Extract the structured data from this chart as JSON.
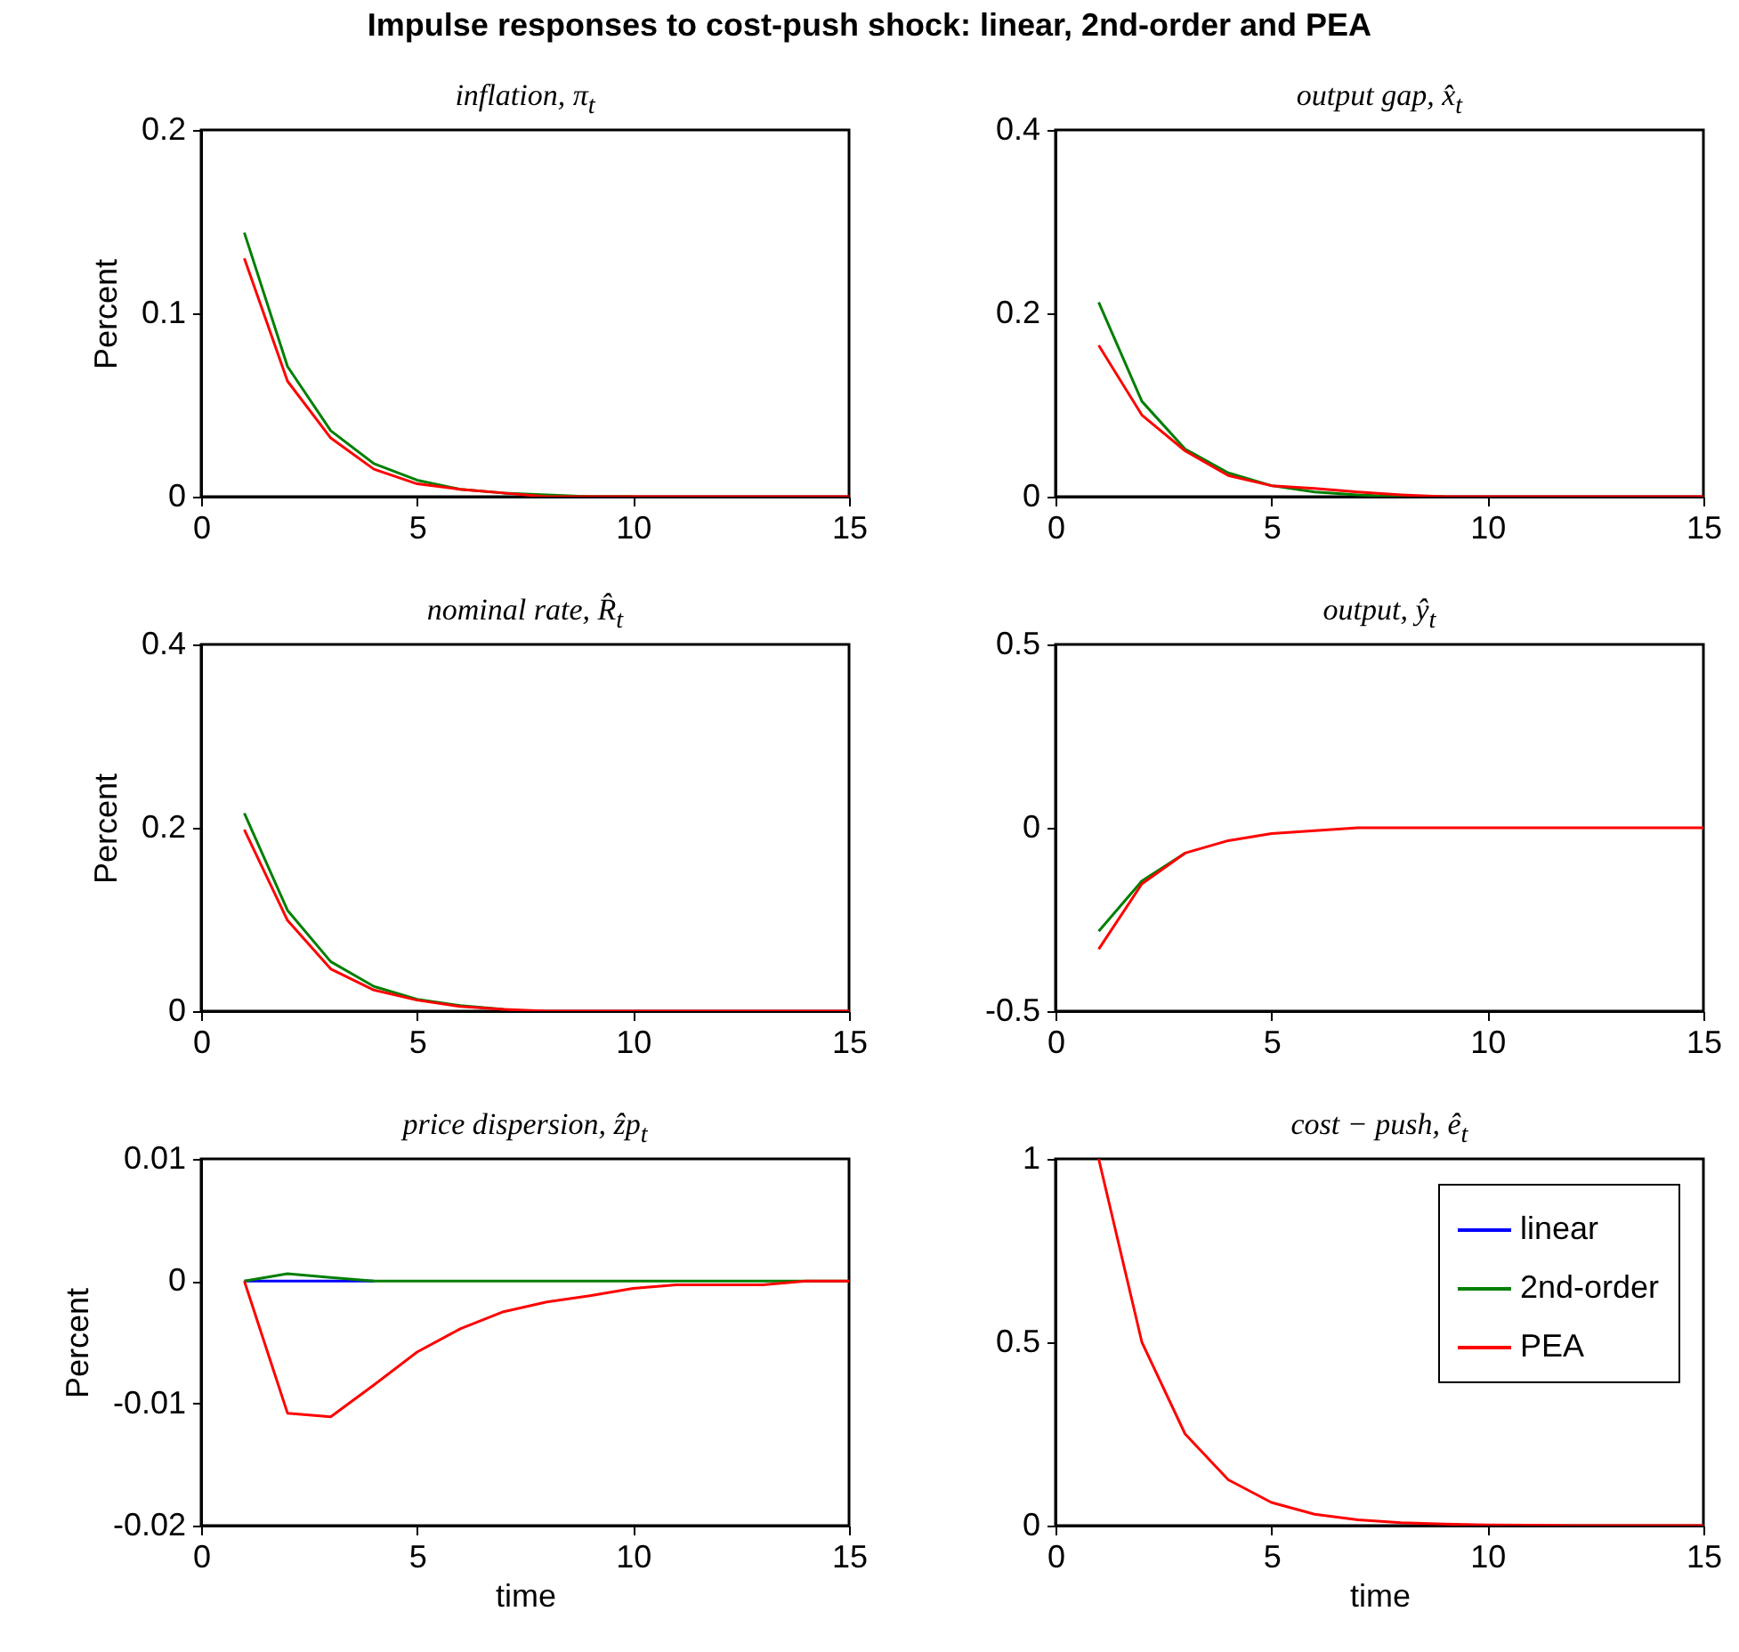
{
  "chart_data": [
    {
      "type": "line",
      "title": "inflation, π$_{t}$",
      "annotations": [
        "Impulse responses to cost-push shock: linear, 2nd-order and PEA"
      ],
      "ylabel": "Percent",
      "x": [
        1,
        2,
        3,
        4,
        5,
        6,
        7,
        8,
        9,
        10,
        11,
        12,
        13,
        14,
        15
      ],
      "xlim": [
        0,
        15
      ],
      "xticks": [
        0,
        5,
        10,
        15
      ],
      "ylim": [
        0,
        0.2
      ],
      "yticks": [
        0,
        0.1,
        0.2
      ],
      "series": [
        {
          "color": "#0000ff",
          "values": [
            null,
            null,
            null,
            null,
            null,
            null,
            null,
            null,
            null,
            null,
            null,
            null,
            null,
            null,
            null
          ]
        },
        {
          "color": "#007f00",
          "values": [
            0.144,
            0.071,
            0.036,
            0.018,
            0.009,
            0.004,
            0.002,
            0.001,
            0,
            0,
            null,
            null,
            null,
            null,
            null
          ]
        },
        {
          "color": "#ff0000",
          "values": [
            0.13,
            0.063,
            0.032,
            0.015,
            0.007,
            0.004,
            0.002,
            0,
            0,
            0,
            0,
            0,
            0,
            0,
            0
          ]
        }
      ]
    },
    {
      "type": "line",
      "title": "output gap, x̂$_{t}$",
      "x": [
        1,
        2,
        3,
        4,
        5,
        6,
        7,
        8,
        9,
        10,
        11,
        12,
        13,
        14,
        15
      ],
      "xlim": [
        0,
        15
      ],
      "xticks": [
        0,
        5,
        10,
        15
      ],
      "ylim": [
        0,
        0.4
      ],
      "yticks": [
        0,
        0.2,
        0.4
      ],
      "series": [
        {
          "color": "#0000ff",
          "values": [
            null,
            null,
            null,
            null,
            null,
            null,
            null,
            null,
            null,
            null,
            null,
            null,
            null,
            null,
            null
          ]
        },
        {
          "color": "#007f00",
          "values": [
            0.212,
            0.104,
            0.052,
            0.026,
            0.012,
            0.005,
            0.002,
            0,
            0,
            null,
            null,
            null,
            null,
            null,
            null
          ]
        },
        {
          "color": "#ff0000",
          "values": [
            0.165,
            0.089,
            0.05,
            0.023,
            0.012,
            0.009,
            0.005,
            0.002,
            0,
            0,
            0,
            0,
            0,
            0,
            0
          ]
        }
      ]
    },
    {
      "type": "line",
      "title": "nominal rate, R̂$_{t}$",
      "ylabel": "Percent",
      "x": [
        1,
        2,
        3,
        4,
        5,
        6,
        7,
        8,
        9,
        10,
        11,
        12,
        13,
        14,
        15
      ],
      "xlim": [
        0,
        15
      ],
      "xticks": [
        0,
        5,
        10,
        15
      ],
      "ylim": [
        0,
        0.4
      ],
      "yticks": [
        0,
        0.2,
        0.4
      ],
      "series": [
        {
          "color": "#0000ff",
          "values": [
            null,
            null,
            null,
            null,
            null,
            null,
            null,
            null,
            null,
            null,
            null,
            null,
            null,
            null,
            null
          ]
        },
        {
          "color": "#007f00",
          "values": [
            0.216,
            0.11,
            0.054,
            0.027,
            0.013,
            0.006,
            0.002,
            null,
            null,
            null,
            null,
            null,
            null,
            null,
            null
          ]
        },
        {
          "color": "#ff0000",
          "values": [
            0.198,
            0.099,
            0.046,
            0.023,
            0.012,
            0.005,
            0.002,
            0,
            0,
            0,
            0,
            0,
            0,
            0,
            0
          ]
        }
      ]
    },
    {
      "type": "line",
      "title": "output, ŷ$_{t}$",
      "x": [
        1,
        2,
        3,
        4,
        5,
        6,
        7,
        8,
        9,
        10,
        11,
        12,
        13,
        14,
        15
      ],
      "xlim": [
        0,
        15
      ],
      "xticks": [
        0,
        5,
        10,
        15
      ],
      "ylim": [
        -0.5,
        0.5
      ],
      "yticks": [
        -0.5,
        0,
        0.5
      ],
      "series": [
        {
          "color": "#0000ff",
          "values": [
            null,
            null,
            null,
            null,
            null,
            null,
            null,
            null,
            null,
            null,
            null,
            null,
            null,
            null,
            null
          ]
        },
        {
          "color": "#007f00",
          "values": [
            -0.282,
            -0.145,
            -0.069,
            null,
            null,
            null,
            null,
            null,
            null,
            null,
            null,
            null,
            null,
            null,
            null
          ]
        },
        {
          "color": "#ff0000",
          "values": [
            -0.331,
            -0.153,
            -0.069,
            -0.035,
            -0.016,
            -0.008,
            0,
            0,
            0,
            0,
            0,
            0,
            0,
            0,
            0
          ]
        }
      ]
    },
    {
      "type": "line",
      "title": "price dispersion, ẑp$_{t}$",
      "xlabel": "time",
      "ylabel": "Percent",
      "x": [
        1,
        2,
        3,
        4,
        5,
        6,
        7,
        8,
        9,
        10,
        11,
        12,
        13,
        14,
        15
      ],
      "xlim": [
        0,
        15
      ],
      "xticks": [
        0,
        5,
        10,
        15
      ],
      "ylim": [
        -0.02,
        0.01
      ],
      "yticks": [
        -0.02,
        -0.01,
        0,
        0.01
      ],
      "series": [
        {
          "color": "#0000ff",
          "values": [
            0,
            0,
            0,
            0,
            null,
            null,
            null,
            null,
            null,
            null,
            null,
            null,
            null,
            null,
            null
          ]
        },
        {
          "color": "#007f00",
          "values": [
            0,
            0.0006,
            0.0003,
            0,
            0,
            0,
            0,
            0,
            0,
            0,
            0,
            0,
            0,
            0,
            0
          ]
        },
        {
          "color": "#ff0000",
          "values": [
            0,
            -0.0108,
            -0.0111,
            -0.0085,
            -0.0058,
            -0.0039,
            -0.0025,
            -0.0017,
            -0.0012,
            -0.0006,
            -0.0003,
            -0.0003,
            -0.0003,
            0,
            0
          ]
        }
      ]
    },
    {
      "type": "line",
      "title": "cost − push, ê$_{t}$",
      "xlabel": "time",
      "x": [
        1,
        2,
        3,
        4,
        5,
        6,
        7,
        8,
        9,
        10,
        11,
        12,
        13,
        14,
        15
      ],
      "xlim": [
        0,
        15
      ],
      "xticks": [
        0,
        5,
        10,
        15
      ],
      "ylim": [
        0,
        1
      ],
      "yticks": [
        0,
        0.5,
        1
      ],
      "legend": "top right",
      "series": [
        {
          "name": "linear",
          "color": "#0000ff",
          "values": [
            null,
            null,
            null,
            null,
            null,
            null,
            null,
            null,
            null,
            null,
            null,
            null,
            null,
            null,
            null
          ]
        },
        {
          "name": "2nd-order",
          "color": "#007f00",
          "values": [
            null,
            null,
            null,
            null,
            null,
            null,
            null,
            null,
            null,
            null,
            null,
            null,
            null,
            null,
            null
          ]
        },
        {
          "name": "PEA",
          "color": "#ff0000",
          "values": [
            1,
            0.5,
            0.25,
            0.125,
            0.063,
            0.031,
            0.016,
            0.008,
            0.004,
            0.002,
            0.001,
            0,
            0,
            0,
            0
          ]
        }
      ]
    }
  ]
}
